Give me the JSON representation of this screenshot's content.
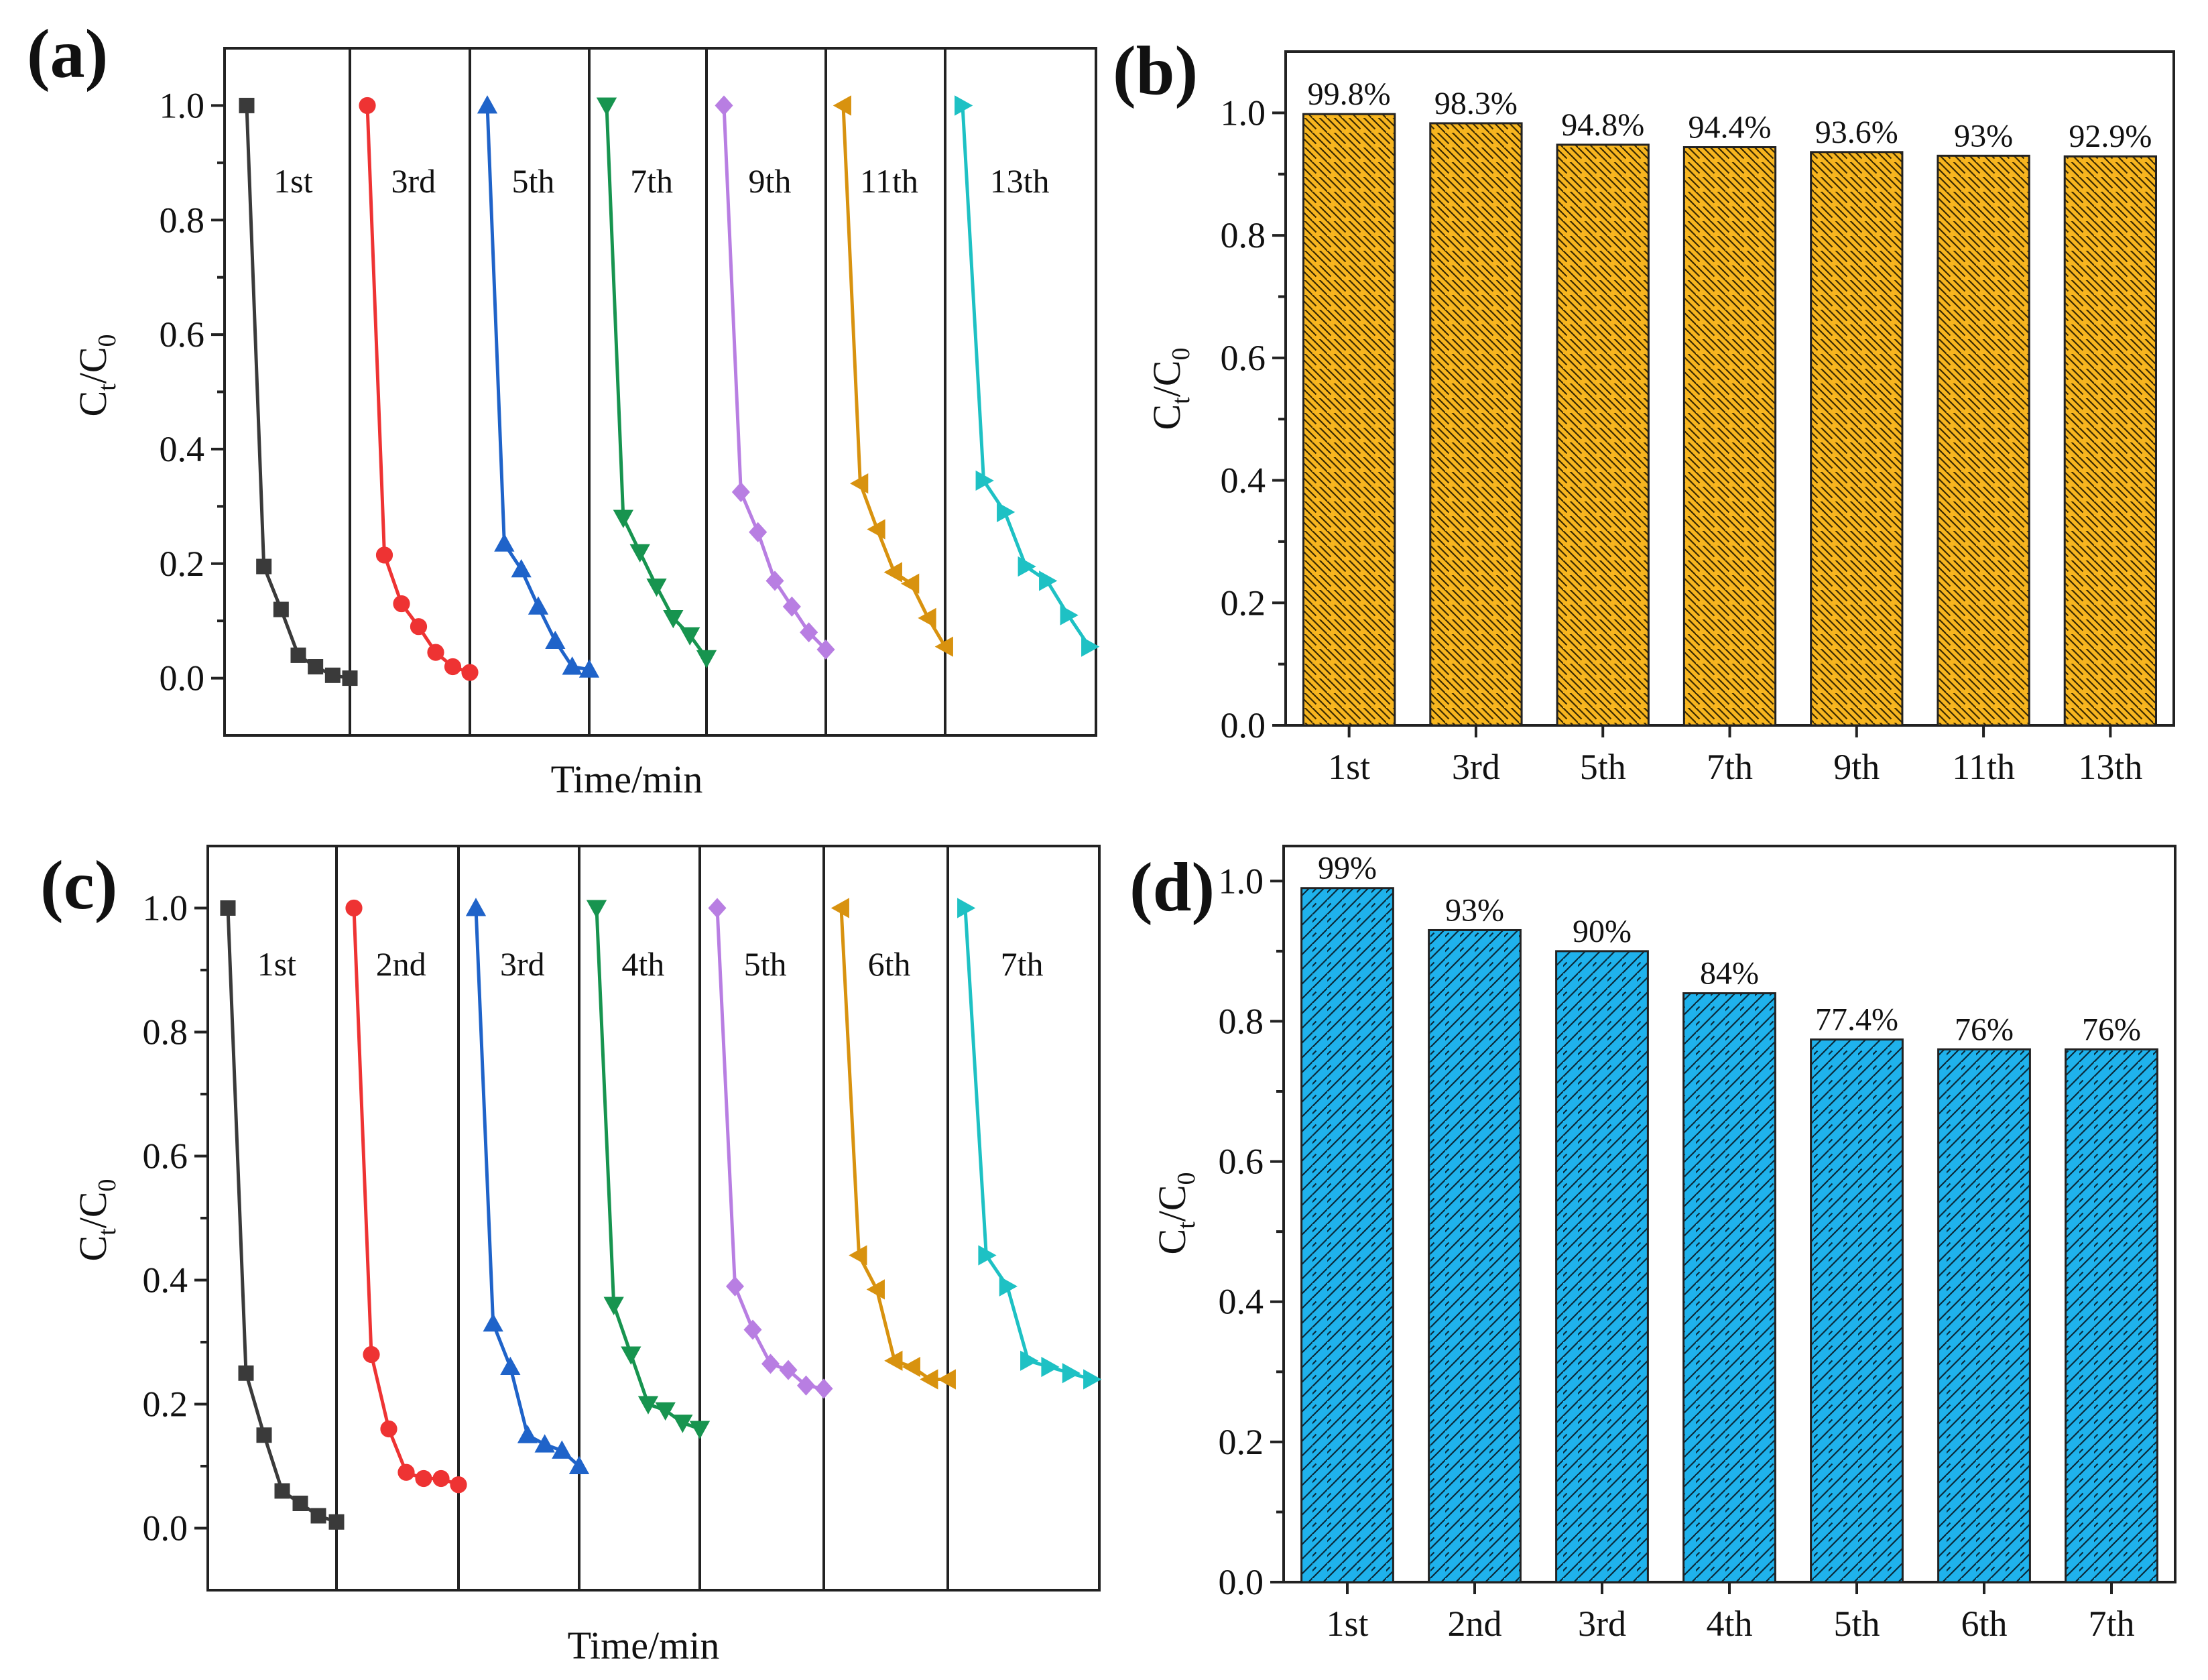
{
  "chart_data": [
    {
      "panel": "(a)",
      "type": "line",
      "xlabel": "Time/min",
      "ylabel_main": "C",
      "ylabel_sub1": "t",
      "ylabel_mid": "/C",
      "ylabel_sub2": "0",
      "ylim": [
        -0.1,
        1.1
      ],
      "yticks": [
        "0.0",
        "0.2",
        "0.4",
        "0.6",
        "0.8",
        "1.0"
      ],
      "grid": false,
      "series": [
        {
          "name": "1st",
          "color": "#3a3a3a",
          "marker": "square",
          "values": [
            1.0,
            0.195,
            0.12,
            0.04,
            0.02,
            0.005,
            0.0
          ]
        },
        {
          "name": "3rd",
          "color": "#ee3333",
          "marker": "circle",
          "values": [
            1.0,
            0.215,
            0.13,
            0.09,
            0.045,
            0.02,
            0.01
          ]
        },
        {
          "name": "5th",
          "color": "#1f63c9",
          "marker": "triangle-up",
          "values": [
            1.0,
            0.235,
            0.19,
            0.125,
            0.065,
            0.02,
            0.015
          ]
        },
        {
          "name": "7th",
          "color": "#17944f",
          "marker": "triangle-down",
          "values": [
            1.0,
            0.28,
            0.22,
            0.16,
            0.105,
            0.075,
            0.035
          ]
        },
        {
          "name": "9th",
          "color": "#b87ee2",
          "marker": "diamond",
          "values": [
            1.0,
            0.325,
            0.255,
            0.17,
            0.125,
            0.08,
            0.05
          ]
        },
        {
          "name": "11th",
          "color": "#d8920f",
          "marker": "triangle-left",
          "values": [
            1.0,
            0.34,
            0.26,
            0.185,
            0.165,
            0.105,
            0.055
          ]
        },
        {
          "name": "13th",
          "color": "#1ec1c4",
          "marker": "triangle-right",
          "values": [
            1.0,
            0.345,
            0.29,
            0.195,
            0.17,
            0.11,
            0.055
          ]
        }
      ]
    },
    {
      "panel": "(b)",
      "type": "bar",
      "ylabel_main": "C",
      "ylabel_sub1": "t",
      "ylabel_mid": "/C",
      "ylabel_sub2": "0",
      "ylim": [
        0,
        1.1
      ],
      "yticks": [
        "0.0",
        "0.2",
        "0.4",
        "0.6",
        "0.8",
        "1.0"
      ],
      "categories": [
        "1st",
        "3rd",
        "5th",
        "7th",
        "9th",
        "11th",
        "13th"
      ],
      "values": [
        0.998,
        0.983,
        0.948,
        0.944,
        0.936,
        0.93,
        0.929
      ],
      "labels": [
        "99.8%",
        "98.3%",
        "94.8%",
        "94.4%",
        "93.6%",
        "93%",
        "92.9%"
      ],
      "bar_color": "#f7b51f",
      "hatch": "backslash"
    },
    {
      "panel": "(c)",
      "type": "line",
      "xlabel": "Time/min",
      "ylabel_main": "C",
      "ylabel_sub1": "t",
      "ylabel_mid": "/C",
      "ylabel_sub2": "0",
      "ylim": [
        -0.1,
        1.1
      ],
      "yticks": [
        "0.0",
        "0.2",
        "0.4",
        "0.6",
        "0.8",
        "1.0"
      ],
      "grid": false,
      "series": [
        {
          "name": "1st",
          "color": "#3a3a3a",
          "marker": "square",
          "values": [
            1.0,
            0.25,
            0.15,
            0.06,
            0.04,
            0.02,
            0.01
          ]
        },
        {
          "name": "2nd",
          "color": "#ee3333",
          "marker": "circle",
          "values": [
            1.0,
            0.28,
            0.16,
            0.09,
            0.08,
            0.08,
            0.07
          ]
        },
        {
          "name": "3rd",
          "color": "#1f63c9",
          "marker": "triangle-up",
          "values": [
            1.0,
            0.33,
            0.26,
            0.15,
            0.135,
            0.125,
            0.1
          ]
        },
        {
          "name": "4th",
          "color": "#17944f",
          "marker": "triangle-down",
          "values": [
            1.0,
            0.36,
            0.28,
            0.2,
            0.19,
            0.17,
            0.16
          ]
        },
        {
          "name": "5th",
          "color": "#b87ee2",
          "marker": "diamond",
          "values": [
            1.0,
            0.39,
            0.32,
            0.265,
            0.255,
            0.23,
            0.225
          ]
        },
        {
          "name": "6th",
          "color": "#d8920f",
          "marker": "triangle-left",
          "values": [
            1.0,
            0.44,
            0.385,
            0.27,
            0.26,
            0.24,
            0.24
          ]
        },
        {
          "name": "7th",
          "color": "#1ec1c4",
          "marker": "triangle-right",
          "values": [
            1.0,
            0.44,
            0.39,
            0.27,
            0.26,
            0.25,
            0.24
          ]
        }
      ]
    },
    {
      "panel": "(d)",
      "type": "bar",
      "ylabel_main": "C",
      "ylabel_sub1": "t",
      "ylabel_mid": "/C",
      "ylabel_sub2": "0",
      "ylim": [
        0,
        1.05
      ],
      "yticks": [
        "0.0",
        "0.2",
        "0.4",
        "0.6",
        "0.8",
        "1.0"
      ],
      "categories": [
        "1st",
        "2nd",
        "3rd",
        "4th",
        "5th",
        "6th",
        "7th"
      ],
      "values": [
        0.99,
        0.93,
        0.9,
        0.84,
        0.774,
        0.76,
        0.76
      ],
      "labels": [
        "99%",
        "93%",
        "90%",
        "84%",
        "77.4%",
        "76%",
        "76%"
      ],
      "bar_color": "#1fb2ec",
      "hatch": "slash"
    }
  ]
}
